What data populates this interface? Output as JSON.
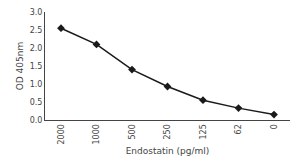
{
  "chart_data": {
    "type": "line",
    "x_label": "Endostatin (pg/ml)",
    "y_label": "OD 405nm",
    "categories": [
      "2000",
      "1000",
      "500",
      "250",
      "125",
      "62",
      "0"
    ],
    "values": [
      2.55,
      2.1,
      1.4,
      0.93,
      0.55,
      0.33,
      0.15
    ],
    "color": "#1a1a1a",
    "marker": "diamond",
    "ylim": [
      0.0,
      3.0
    ],
    "yticks": [
      {
        "value": 0,
        "label": "0.0"
      },
      0.5,
      {
        "value": 1,
        "label": "1.0"
      },
      1.5,
      {
        "value": 2,
        "label": "2.0"
      },
      2.5,
      {
        "value": 3,
        "label": "3.0"
      }
    ],
    "grid": false
  }
}
